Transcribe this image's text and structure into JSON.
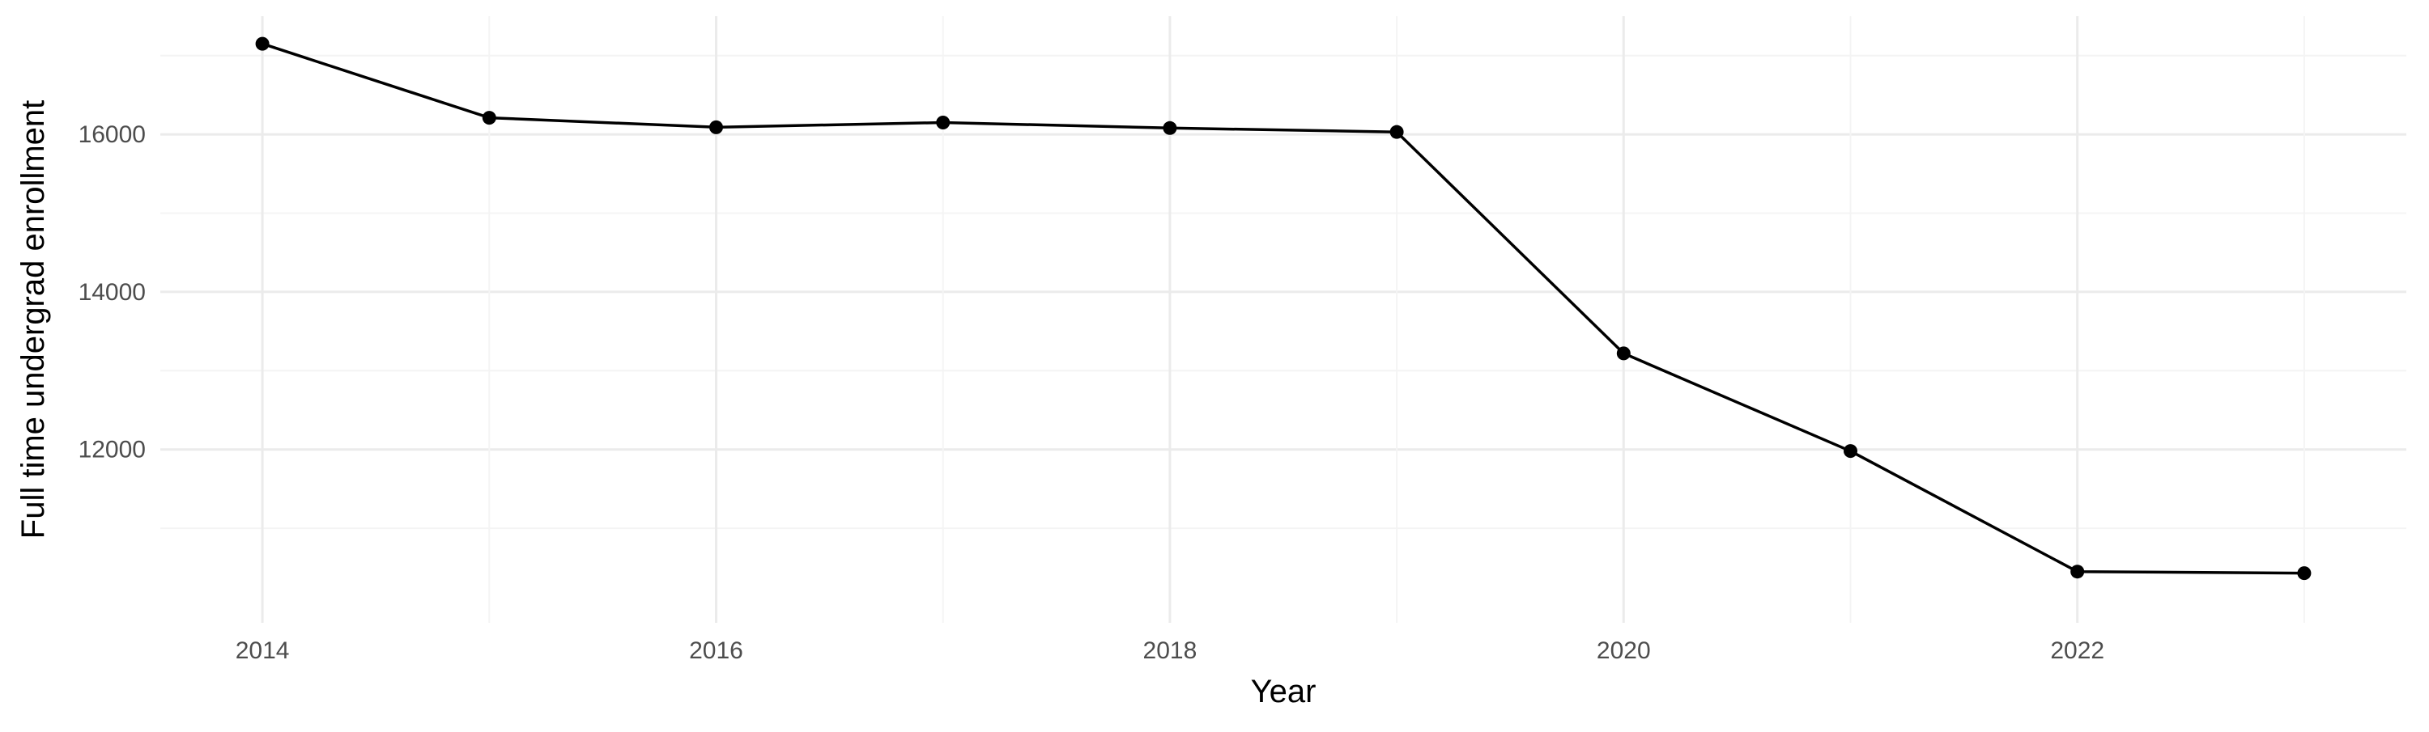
{
  "chart_data": {
    "type": "line",
    "title": "",
    "xlabel": "Year",
    "ylabel": "Full time undergrad enrollment",
    "x": [
      2014,
      2015,
      2016,
      2017,
      2018,
      2019,
      2020,
      2021,
      2022,
      2023
    ],
    "series": [
      {
        "values": [
          17150,
          16210,
          16090,
          16150,
          16080,
          16030,
          13220,
          11980,
          10450,
          10430
        ]
      }
    ],
    "xlim": [
      2013.55,
      2023.45
    ],
    "ylim": [
      9800,
      17500
    ],
    "x_ticks": [
      2014,
      2016,
      2018,
      2020,
      2022
    ],
    "x_tick_labels": [
      "2014",
      "2016",
      "2018",
      "2020",
      "2022"
    ],
    "y_ticks": [
      12000,
      14000,
      16000
    ],
    "y_tick_labels": [
      "12000",
      "14000",
      "16000"
    ],
    "x_minor_ticks": [
      2015,
      2017,
      2019,
      2021,
      2023
    ],
    "y_minor_ticks": [
      11000,
      13000,
      15000,
      17000
    ],
    "grid": true,
    "legend": "none",
    "colors": {
      "line": "#000000",
      "grid_major": "#ebebeb",
      "grid_minor": "#f4f4f4",
      "background": "#ffffff"
    }
  }
}
